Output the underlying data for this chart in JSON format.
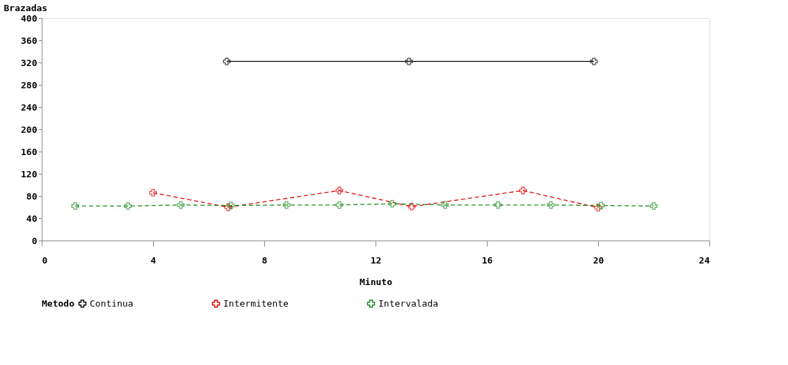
{
  "chart_data": {
    "type": "line",
    "xlabel": "Minuto",
    "ylabel": "Brazadas",
    "legend_title": "Metodo",
    "xlim": [
      0,
      24
    ],
    "xticks": [
      0,
      4,
      8,
      12,
      16,
      20,
      24
    ],
    "ylim": [
      0,
      400
    ],
    "yticks": [
      0,
      40,
      80,
      120,
      160,
      200,
      240,
      280,
      320,
      360,
      400
    ],
    "grid": false,
    "legend": "bottom",
    "marker": "cross",
    "series": [
      {
        "name": "Continua",
        "color": "#000000",
        "line_style": "solid",
        "x": [
          6.65,
          13.2,
          19.85
        ],
        "values": [
          322,
          322,
          322
        ]
      },
      {
        "name": "Intermitente",
        "color": "#e00000",
        "line_style": "dashed",
        "x": [
          4,
          6.7,
          10.7,
          13.3,
          17.3,
          20
        ],
        "values": [
          86,
          60,
          90,
          61,
          90,
          59
        ]
      },
      {
        "name": "Intervalada",
        "color": "#1a8a1a",
        "line_style": "dashed",
        "x": [
          1.2,
          3.1,
          5,
          6.8,
          8.8,
          10.7,
          12.6,
          14.5,
          16.4,
          18.3,
          20.1,
          22
        ],
        "values": [
          62,
          62,
          64,
          63,
          64,
          64,
          66,
          64,
          64,
          64,
          63,
          62
        ]
      }
    ]
  }
}
